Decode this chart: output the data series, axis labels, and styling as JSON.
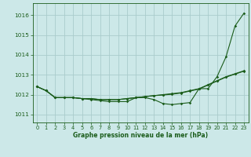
{
  "title": "Graphe pression niveau de la mer (hPa)",
  "background_color": "#cce8e8",
  "grid_color": "#aacccc",
  "line_color": "#1a5c1a",
  "xlim": [
    -0.5,
    23.5
  ],
  "ylim": [
    1010.6,
    1016.6
  ],
  "yticks": [
    1011,
    1012,
    1013,
    1014,
    1015,
    1016
  ],
  "xticks": [
    0,
    1,
    2,
    3,
    4,
    5,
    6,
    7,
    8,
    9,
    10,
    11,
    12,
    13,
    14,
    15,
    16,
    17,
    18,
    19,
    20,
    21,
    22,
    23
  ],
  "line1": [
    1012.4,
    1012.2,
    1011.85,
    1011.85,
    1011.85,
    1011.8,
    1011.75,
    1011.7,
    1011.65,
    1011.65,
    1011.65,
    1011.85,
    1011.85,
    1011.75,
    1011.55,
    1011.5,
    1011.55,
    1011.6,
    1012.3,
    1012.3,
    1012.9,
    1013.9,
    1015.45,
    1016.1
  ],
  "line2": [
    1012.4,
    1012.2,
    1011.85,
    1011.85,
    1011.85,
    1011.8,
    1011.8,
    1011.75,
    1011.75,
    1011.75,
    1011.8,
    1011.85,
    1011.9,
    1011.95,
    1012.0,
    1012.05,
    1012.1,
    1012.2,
    1012.3,
    1012.5,
    1012.7,
    1012.9,
    1013.05,
    1013.2
  ],
  "line3": [
    1012.4,
    1012.2,
    1011.85,
    1011.85,
    1011.85,
    1011.8,
    1011.8,
    1011.75,
    1011.75,
    1011.75,
    1011.8,
    1011.85,
    1011.9,
    1011.95,
    1011.98,
    1012.02,
    1012.08,
    1012.18,
    1012.28,
    1012.48,
    1012.68,
    1012.88,
    1013.03,
    1013.18
  ],
  "marker_size": 1.8,
  "line_width": 0.8,
  "xlabel_fontsize": 5.5,
  "tick_fontsize": 4.8
}
